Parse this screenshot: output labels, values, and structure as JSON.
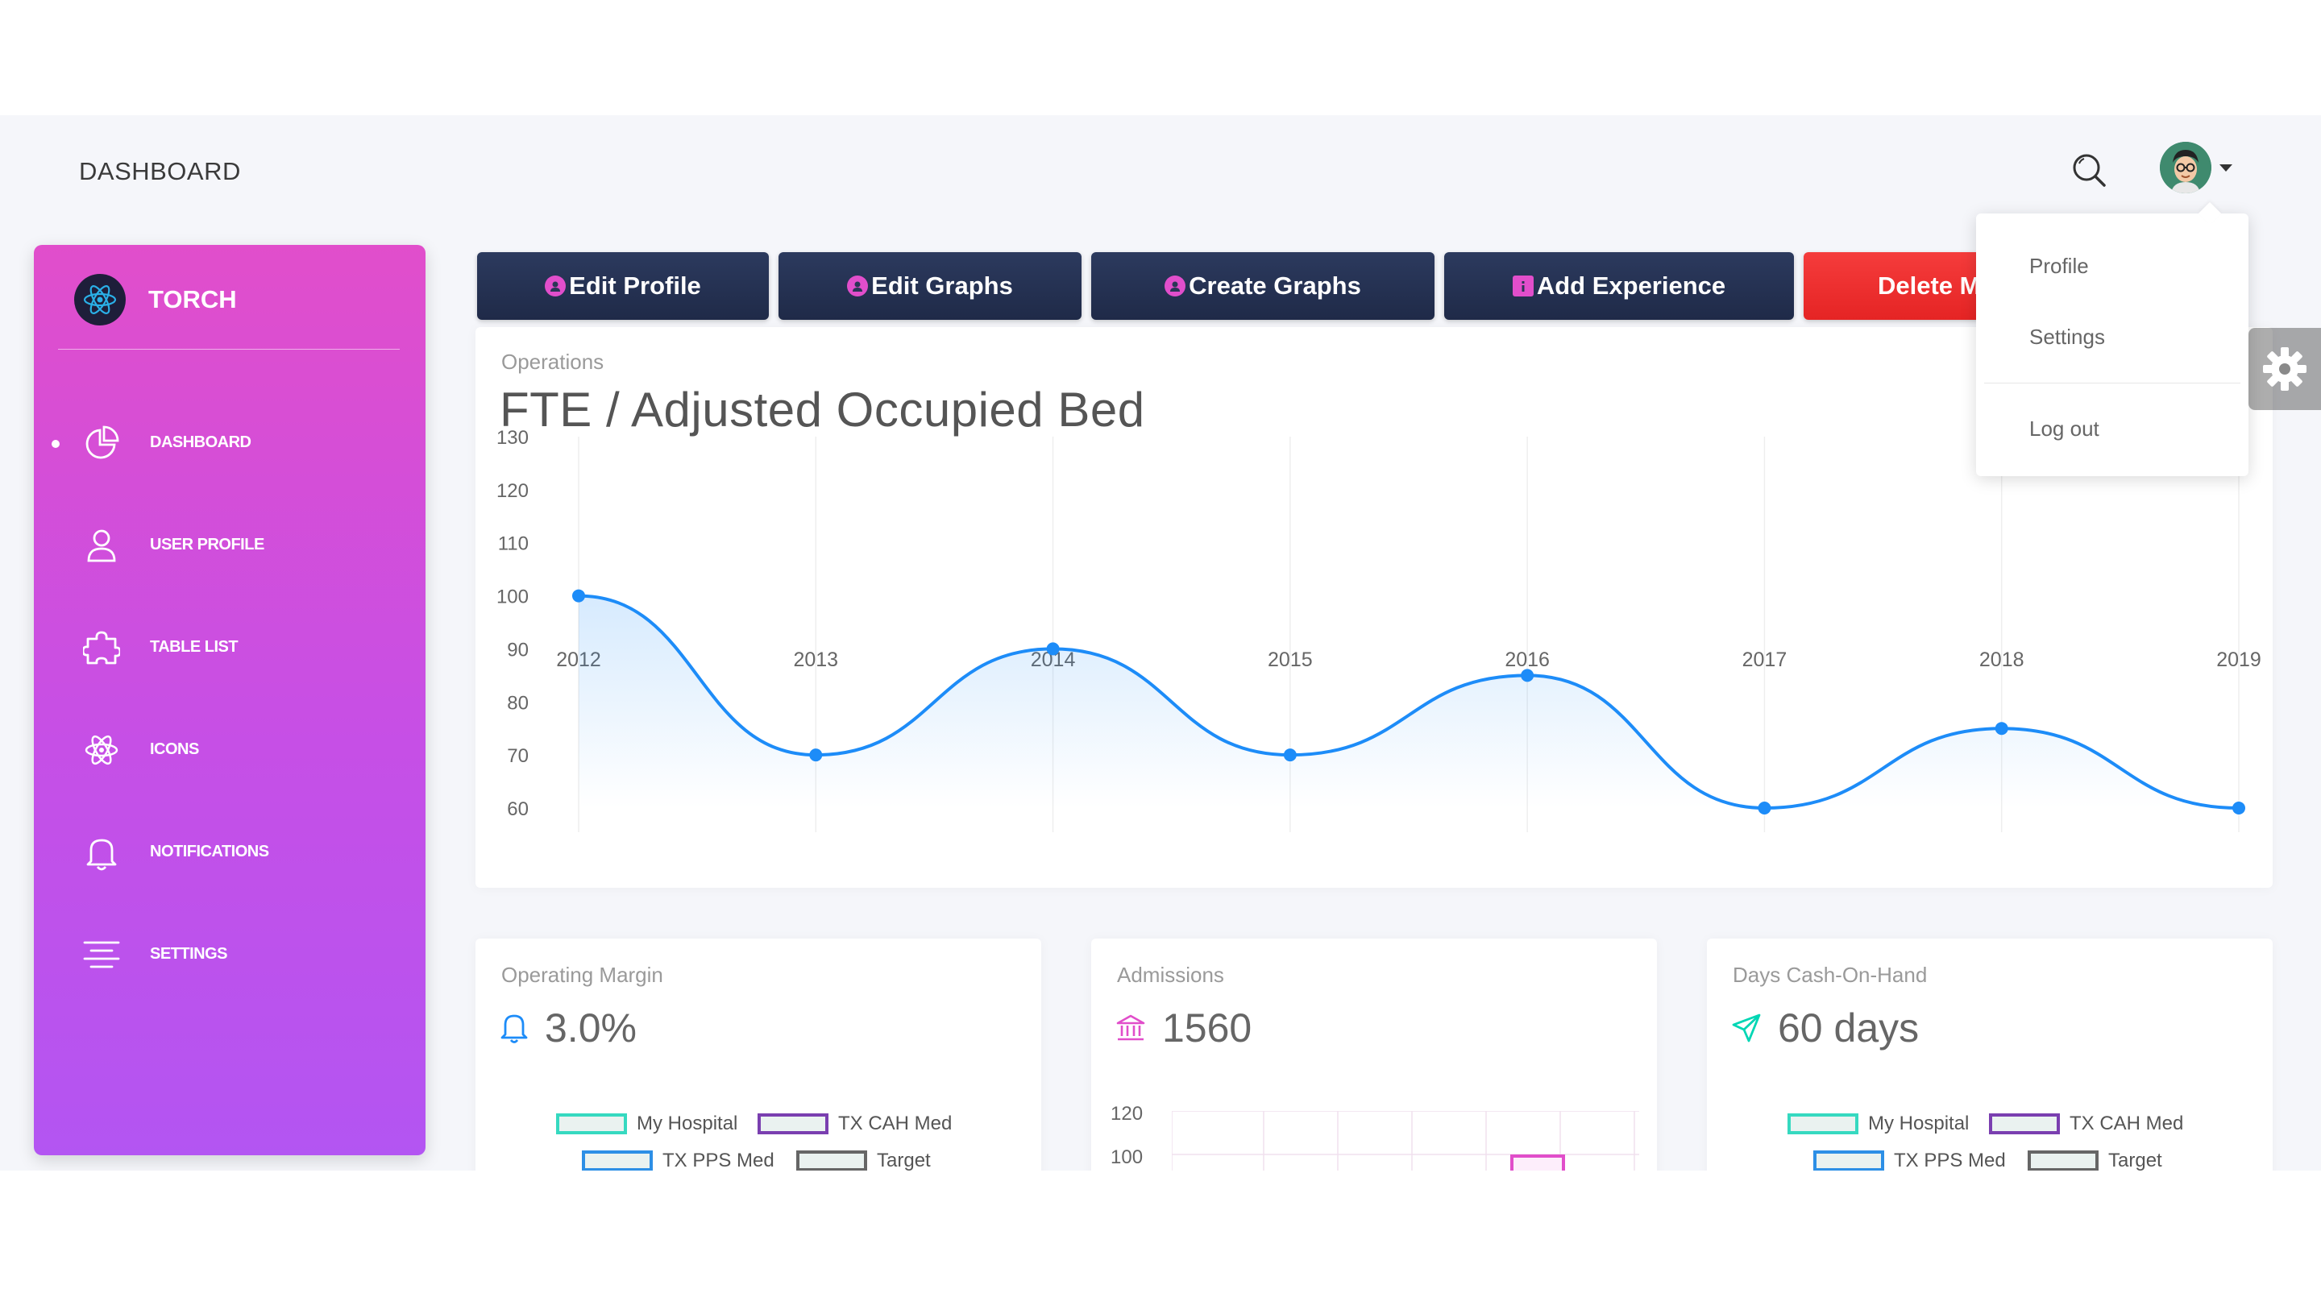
{
  "header": {
    "title": "DASHBOARD",
    "search_icon": "search-icon",
    "avatar_icon": "avatar"
  },
  "brand": {
    "name": "TORCH",
    "logo_icon": "atom-icon"
  },
  "sidebar": {
    "items": [
      {
        "label": "DASHBOARD",
        "icon": "chart-pie-icon",
        "active": true
      },
      {
        "label": "USER PROFILE",
        "icon": "user-icon",
        "active": false
      },
      {
        "label": "TABLE LIST",
        "icon": "puzzle-icon",
        "active": false
      },
      {
        "label": "ICONS",
        "icon": "atom-icon",
        "active": false
      },
      {
        "label": "NOTIFICATIONS",
        "icon": "bell-icon",
        "active": false
      },
      {
        "label": "SETTINGS",
        "icon": "align-center-icon",
        "active": false
      }
    ]
  },
  "toolbar": {
    "edit_profile": "Edit Profile",
    "edit_graphs": "Edit Graphs",
    "create_graphs": "Create Graphs",
    "add_experience": "Add Experience",
    "delete": "Delete M"
  },
  "user_menu": {
    "profile": "Profile",
    "settings": "Settings",
    "logout": "Log out"
  },
  "main_chart": {
    "category": "Operations",
    "title": "FTE / Adjusted Occupied Bed"
  },
  "chart_data": {
    "type": "line",
    "title": "FTE / Adjusted Occupied Bed",
    "x": [
      "2012",
      "2013",
      "2014",
      "2015",
      "2016",
      "2017",
      "2018",
      "2019"
    ],
    "series": [
      {
        "values": [
          100,
          70,
          90,
          70,
          85,
          60,
          75,
          60
        ]
      }
    ],
    "yticks": [
      60,
      70,
      80,
      90,
      100,
      110,
      120,
      130
    ],
    "ylim": [
      60,
      130
    ],
    "grid": "vertical",
    "color": "#1d8cf8"
  },
  "stats": [
    {
      "category": "Operating Margin",
      "value": "3.0%",
      "icon": "bell-icon",
      "icon_color": "#1d8cf8"
    },
    {
      "category": "Admissions",
      "value": "1560",
      "icon": "bank-icon",
      "icon_color": "#e14eca"
    },
    {
      "category": "Days Cash-On-Hand",
      "value": "60 days",
      "icon": "send-icon",
      "icon_color": "#00d6b4"
    }
  ],
  "legend": {
    "my_hospital": "My Hospital",
    "tx_cah_med": "TX CAH Med",
    "tx_pps_med": "TX PPS Med",
    "target": "Target"
  },
  "admissions_axis": {
    "ticks": [
      "120",
      "100"
    ]
  },
  "colors": {
    "my_hospital": "#36d9c0",
    "tx_cah_med": "#7a3fb0",
    "tx_pps_med": "#2d8fe6",
    "target": "#666666"
  }
}
